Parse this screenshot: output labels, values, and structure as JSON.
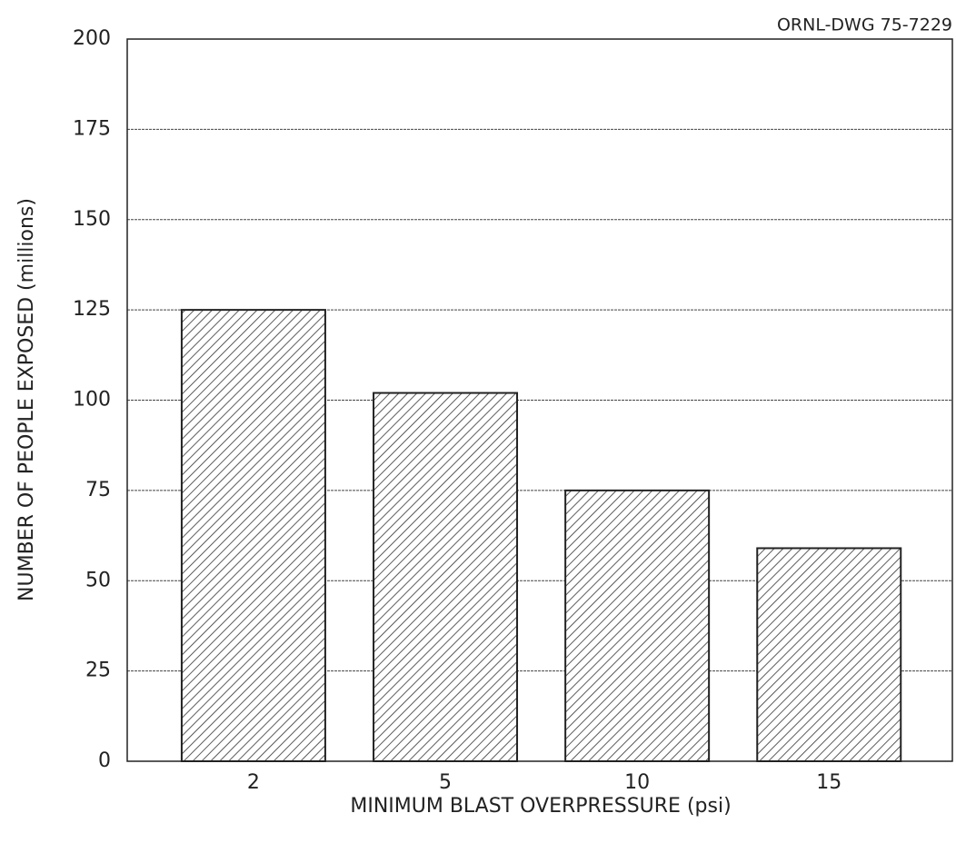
{
  "chart_data": {
    "type": "bar",
    "annotation": "ORNL-DWG 75-7229",
    "x_label": "MINIMUM BLAST OVERPRESSURE (psi)",
    "y_label": "NUMBER OF PEOPLE EXPOSED (millions)",
    "categories": [
      "2",
      "5",
      "10",
      "15"
    ],
    "values": [
      125,
      102,
      75,
      59
    ],
    "color": "#222222",
    "ylim": [
      0,
      200
    ],
    "yticks": [
      0,
      25,
      50,
      75,
      100,
      125,
      150,
      175,
      200
    ],
    "grid": true
  }
}
